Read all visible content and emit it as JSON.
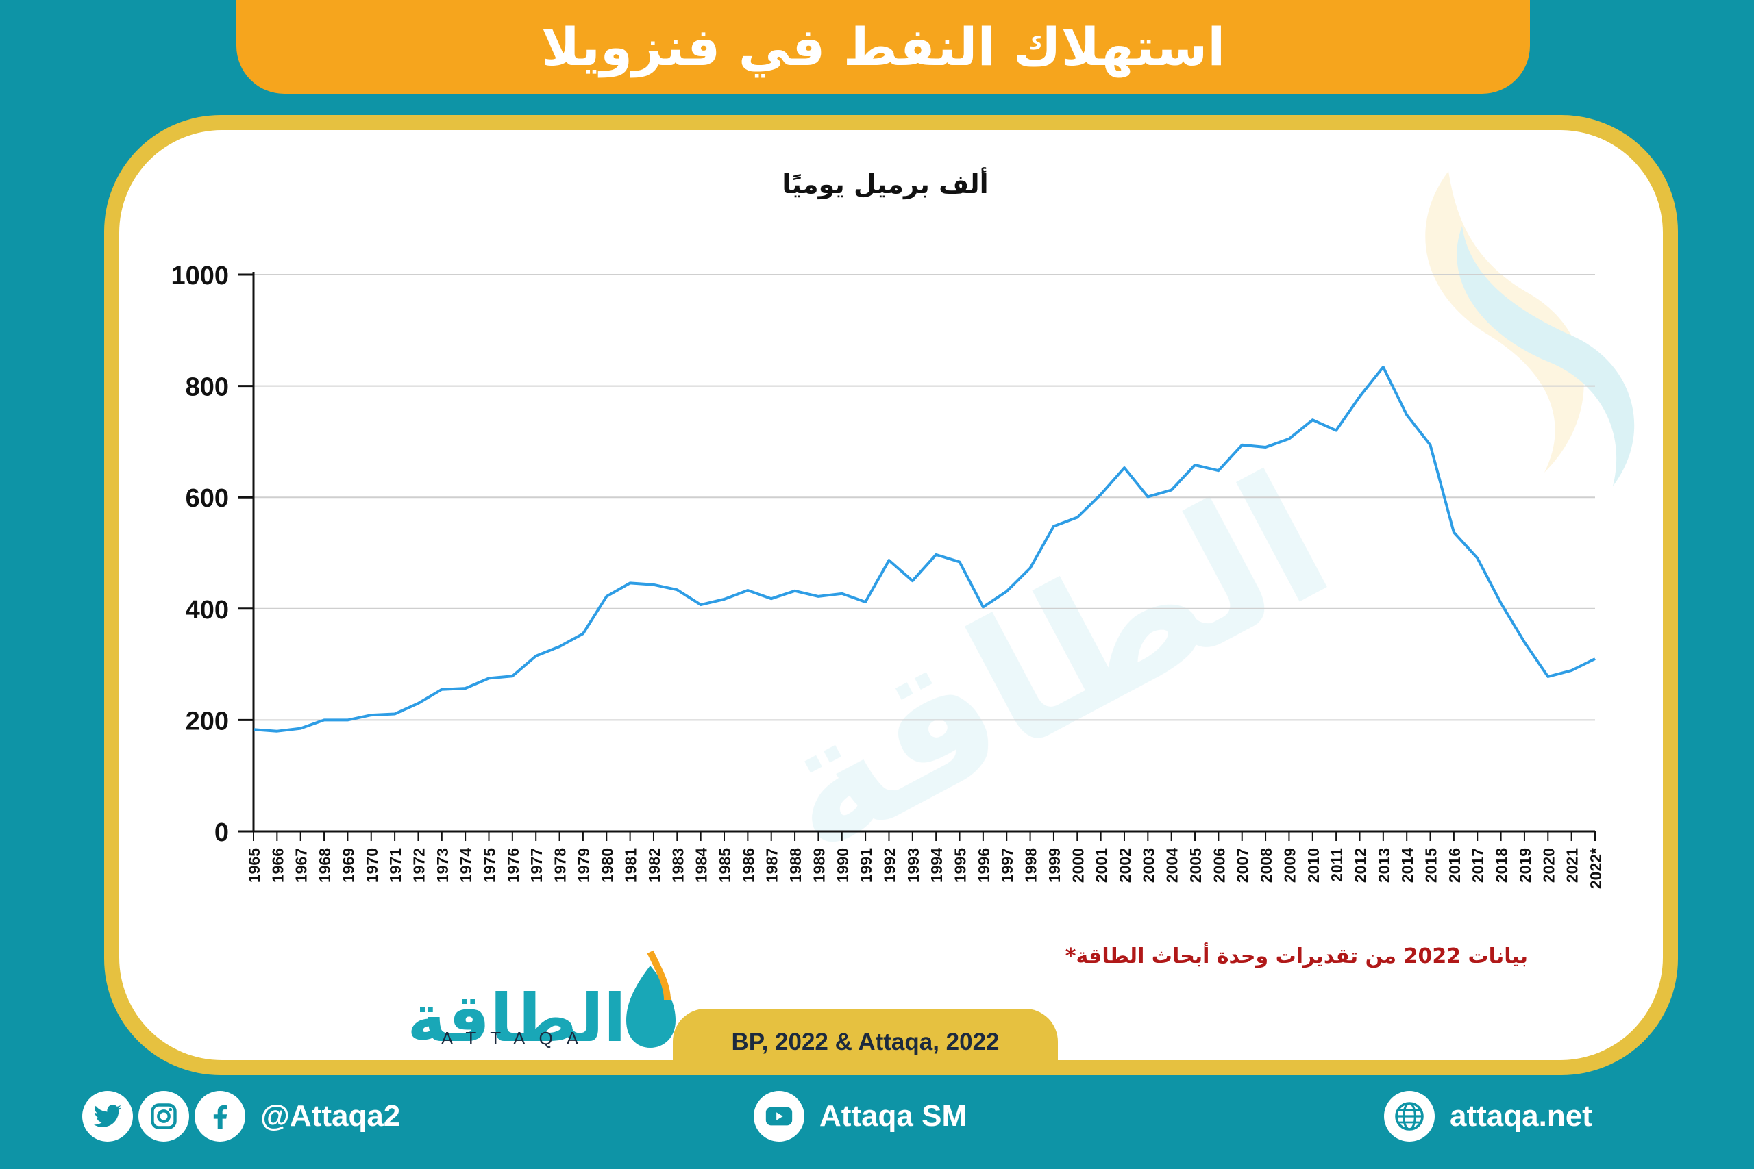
{
  "header": {
    "title": "استهلاك النفط في فنزويلا"
  },
  "chart_data": {
    "type": "line",
    "title": "ألف برميل يوميًا",
    "ylim": [
      0,
      1000
    ],
    "yticks": [
      "0",
      "200",
      "400",
      "600",
      "800",
      "1000"
    ],
    "x": [
      "1965",
      "1966",
      "1967",
      "1968",
      "1969",
      "1970",
      "1971",
      "1972",
      "1973",
      "1974",
      "1975",
      "1976",
      "1977",
      "1978",
      "1979",
      "1980",
      "1981",
      "1982",
      "1983",
      "1984",
      "1985",
      "1986",
      "1987",
      "1988",
      "1989",
      "1990",
      "1991",
      "1992",
      "1993",
      "1994",
      "1995",
      "1996",
      "1997",
      "1998",
      "1999",
      "2000",
      "2001",
      "2002",
      "2003",
      "2004",
      "2005",
      "2006",
      "2007",
      "2008",
      "2009",
      "2010",
      "2011",
      "2012",
      "2013",
      "2014",
      "2015",
      "2016",
      "2017",
      "2018",
      "2019",
      "2020",
      "2021",
      "2022*"
    ],
    "series": [
      {
        "values": [
          183,
          180,
          185,
          200,
          200,
          209,
          211,
          230,
          255,
          257,
          275,
          279,
          315,
          332,
          355,
          422,
          446,
          443,
          434,
          407,
          417,
          433,
          418,
          432,
          422,
          427,
          412,
          487,
          450,
          497,
          484,
          403,
          431,
          473,
          548,
          564,
          605,
          653,
          601,
          613,
          658,
          648,
          694,
          690,
          705,
          739,
          720,
          781,
          834,
          748,
          694,
          537,
          491,
          410,
          340,
          278,
          289,
          310
        ]
      }
    ],
    "footnote": "*بيانات 2022 من تقديرات وحدة أبحاث الطاقة",
    "grid": true,
    "line_color": "#2e9de5"
  },
  "logo": {
    "arabic": "الطاقة",
    "latin": "ATTAQA"
  },
  "source": "BP, 2022 & Attaqa, 2022",
  "footer": {
    "social_handle": "@Attaqa2",
    "youtube_label": "Attaqa SM",
    "website": "attaqa.net",
    "icons": [
      "twitter-icon",
      "instagram-icon",
      "facebook-icon",
      "youtube-icon",
      "globe-icon"
    ]
  },
  "colors": {
    "background": "#0e94a6",
    "banner": "#f6a51d",
    "border": "#e6c140",
    "line": "#2e9de5",
    "footnote": "#b01818"
  }
}
